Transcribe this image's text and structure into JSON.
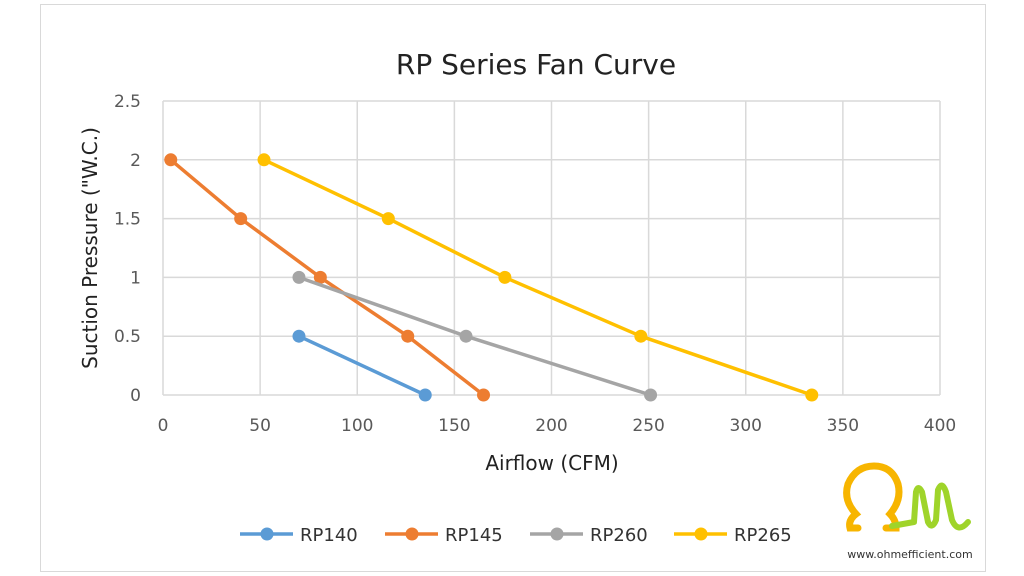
{
  "chart_data": {
    "type": "line",
    "title": "RP Series Fan Curve",
    "xlabel": "Airflow (CFM)",
    "ylabel": "Suction Pressure (\"W.C.)",
    "xlim": [
      0,
      400
    ],
    "ylim": [
      0,
      2.5
    ],
    "xticks": [
      "0",
      "50",
      "100",
      "150",
      "200",
      "250",
      "300",
      "350",
      "400"
    ],
    "yticks": [
      "0",
      "0.5",
      "1",
      "1.5",
      "2",
      "2.5"
    ],
    "grid": true,
    "legend_position": "bottom",
    "series": [
      {
        "name": "RP140",
        "color": "#5b9bd5",
        "x": [
          70,
          135
        ],
        "y": [
          0.5,
          0
        ]
      },
      {
        "name": "RP145",
        "color": "#ed7d31",
        "x": [
          4,
          40,
          81,
          126,
          165
        ],
        "y": [
          2,
          1.5,
          1,
          0.5,
          0
        ]
      },
      {
        "name": "RP260",
        "color": "#a5a5a5",
        "x": [
          70,
          156,
          251
        ],
        "y": [
          1,
          0.5,
          0
        ]
      },
      {
        "name": "RP265",
        "color": "#ffc000",
        "x": [
          52,
          116,
          176,
          246,
          334
        ],
        "y": [
          2,
          1.5,
          1,
          0.5,
          0
        ]
      }
    ]
  },
  "logo": {
    "text": "Om",
    "url": "www.ohmefficient.com",
    "colors": [
      "#f7b500",
      "#9fd42a"
    ]
  }
}
